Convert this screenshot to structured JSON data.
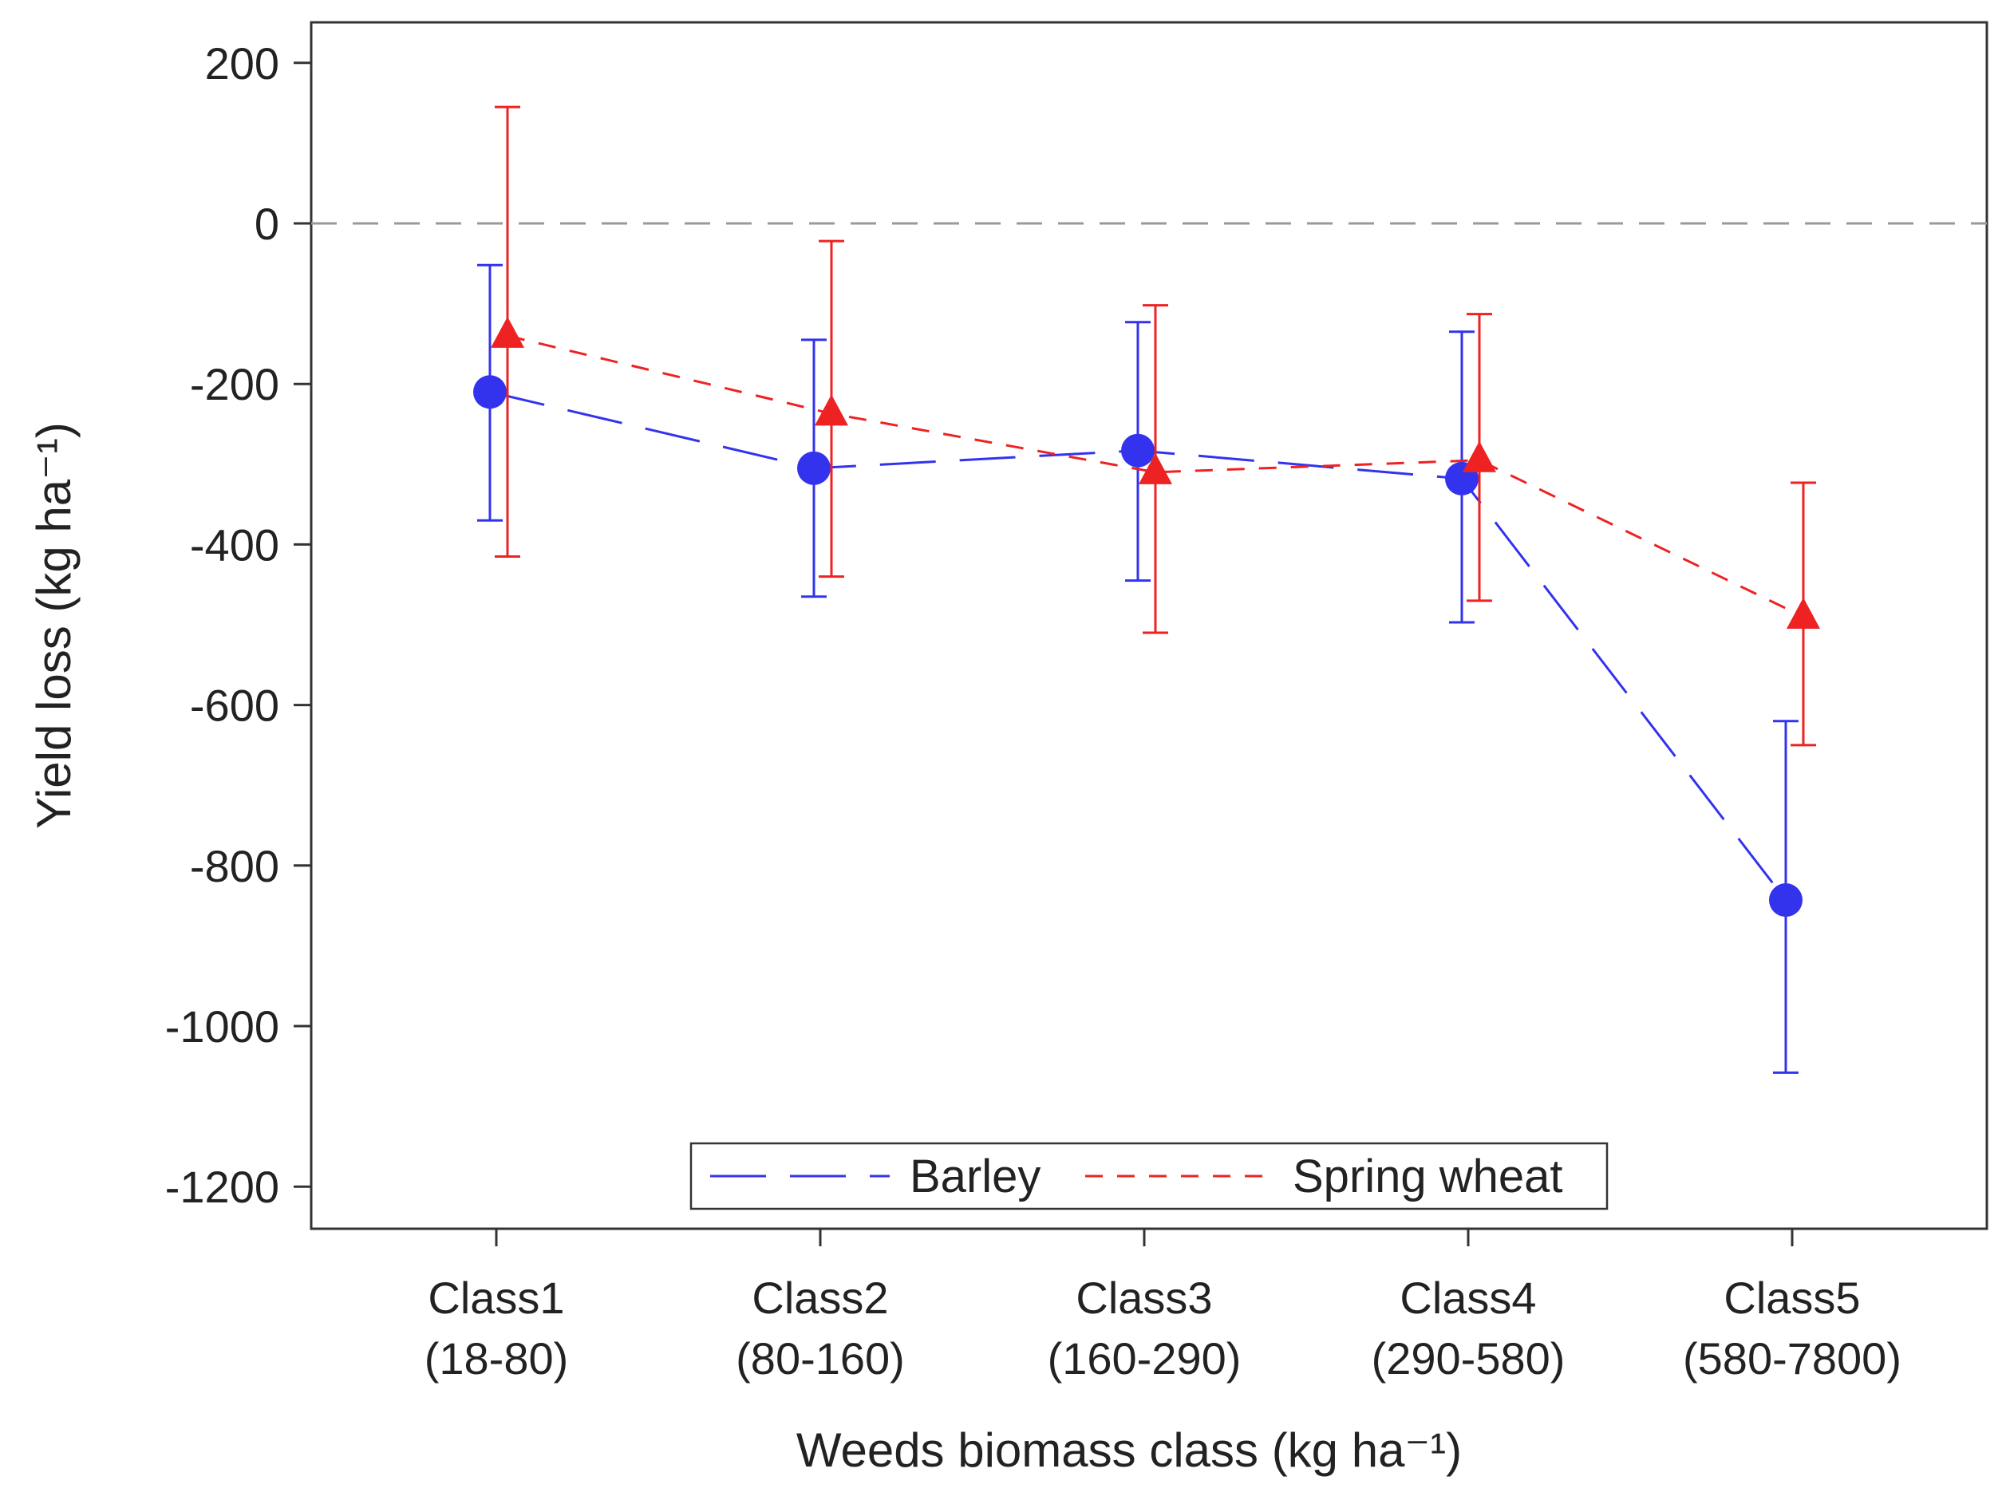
{
  "chart_data": {
    "type": "line",
    "title": "",
    "xlabel": "Weeds biomass class (kg ha⁻¹)",
    "ylabel": "Yield loss (kg ha⁻¹)",
    "ylim": [
      -1250,
      250
    ],
    "yticks": [
      200,
      0,
      -200,
      -400,
      -600,
      -800,
      -1000,
      -1200
    ],
    "reference_line": 0,
    "categories": [
      {
        "name": "Class1",
        "range": "(18-80)"
      },
      {
        "name": "Class2",
        "range": "(80-160)"
      },
      {
        "name": "Class3",
        "range": "(160-290)"
      },
      {
        "name": "Class4",
        "range": "(290-580)"
      },
      {
        "name": "Class5",
        "range": "(580-7800)"
      }
    ],
    "legend_position": "bottom-center",
    "series": [
      {
        "name": "Barley",
        "color": "#3333ee",
        "marker": "circle",
        "line_style": "long-dash",
        "values": [
          -210,
          -305,
          -283,
          -318,
          -843
        ],
        "error_low": [
          -370,
          -465,
          -445,
          -497,
          -1058
        ],
        "error_high": [
          -52,
          -145,
          -123,
          -135,
          -620
        ]
      },
      {
        "name": "Spring wheat",
        "color": "#ee2222",
        "marker": "triangle",
        "line_style": "short-dash",
        "values": [
          -140,
          -237,
          -310,
          -295,
          -490
        ],
        "error_low": [
          -415,
          -440,
          -510,
          -470,
          -650
        ],
        "error_high": [
          145,
          -22,
          -102,
          -113,
          -323
        ]
      }
    ]
  }
}
